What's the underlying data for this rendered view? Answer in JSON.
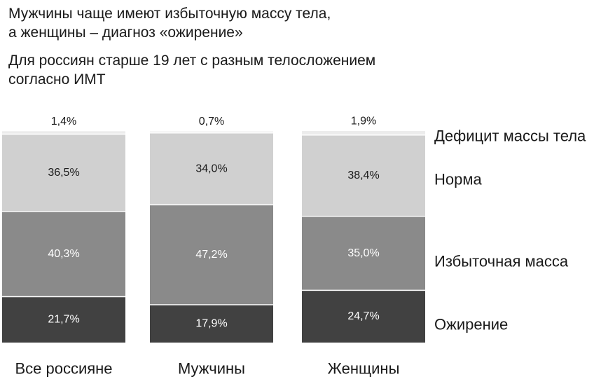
{
  "title": "Мужчины чаще имеют избыточную массу тела,\nа женщины – диагноз «ожирение»",
  "title_lines": [
    "Мужчины чаще имеют избыточную массу тела,",
    "а женщины – диагноз «ожирение»"
  ],
  "subtitle_lines": [
    "Для россиян старше 19 лет с разным телосложением",
    "согласно ИМТ"
  ],
  "chart_data": {
    "type": "bar",
    "stacked": true,
    "percent": true,
    "categories": [
      "Все россияне",
      "Мужчины",
      "Женщины"
    ],
    "series": [
      {
        "name": "Ожирение",
        "values": [
          21.7,
          17.9,
          24.7
        ],
        "labels": [
          "21,7%",
          "17,9%",
          "24,7%"
        ],
        "color": "#414141",
        "label_color": "#ffffff"
      },
      {
        "name": "Избыточная масса",
        "values": [
          40.3,
          47.2,
          35.0
        ],
        "labels": [
          "40,3%",
          "47,2%",
          "35,0%"
        ],
        "color": "#8a8a8a",
        "label_color": "#ffffff"
      },
      {
        "name": "Норма",
        "values": [
          36.5,
          34.0,
          38.4
        ],
        "labels": [
          "36,5%",
          "34,0%",
          "38,4%"
        ],
        "color": "#d0d0d0",
        "label_color": "#1a1a1a"
      },
      {
        "name": "Дефицит массы тела",
        "values": [
          1.4,
          0.7,
          1.9
        ],
        "labels": [
          "1,4%",
          "0,7%",
          "1,9%"
        ],
        "color": "#ececec",
        "label_color": "#1a1a1a",
        "label_position": "above"
      }
    ],
    "ylim": [
      0,
      100
    ],
    "grid": false,
    "legend_position": "right"
  }
}
